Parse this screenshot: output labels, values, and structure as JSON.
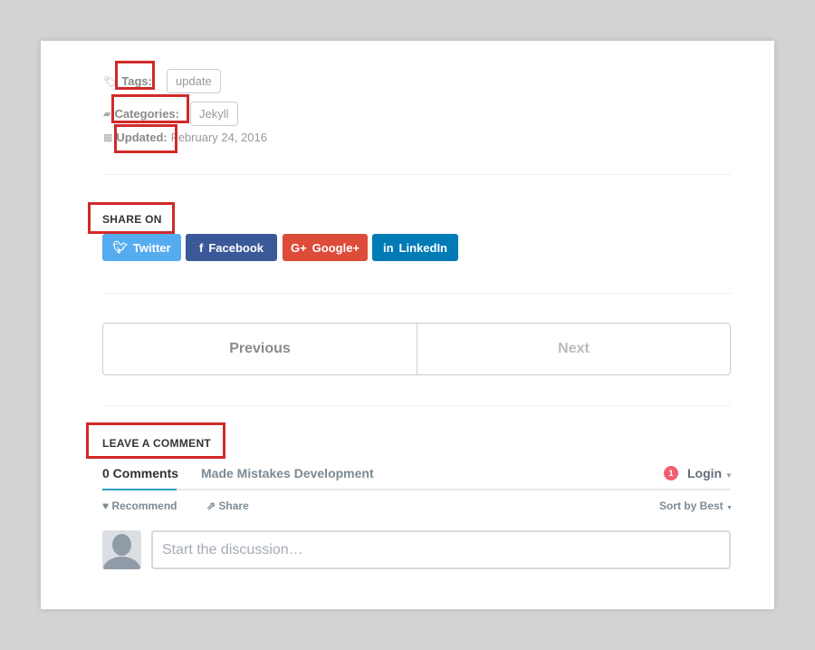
{
  "meta": {
    "tags_label": "Tags:",
    "tag": "update",
    "categories_label": "Categories:",
    "category": "Jekyll",
    "updated_label": "Updated:",
    "updated_date": "February 24, 2016"
  },
  "share": {
    "heading": "SHARE ON",
    "buttons": [
      {
        "label": "Twitter",
        "color": "#55acee",
        "icon": "twitter-icon"
      },
      {
        "label": "Facebook",
        "color": "#3b5998",
        "icon": "facebook-icon"
      },
      {
        "label": "Google+",
        "color": "#dd4b39",
        "icon": "google-plus-icon"
      },
      {
        "label": "LinkedIn",
        "color": "#007bb6",
        "icon": "linkedin-icon"
      }
    ]
  },
  "pagination": {
    "previous": "Previous",
    "next": "Next"
  },
  "comments": {
    "heading": "LEAVE A COMMENT",
    "tab_count": "0 Comments",
    "tab_site": "Made Mistakes Development",
    "notification_count": "1",
    "login": "Login",
    "recommend": "Recommend",
    "share": "Share",
    "sort": "Sort by Best",
    "placeholder": "Start the discussion…"
  },
  "colors": {
    "highlight": "#d02a2a",
    "accent": "#2e9fc5"
  }
}
